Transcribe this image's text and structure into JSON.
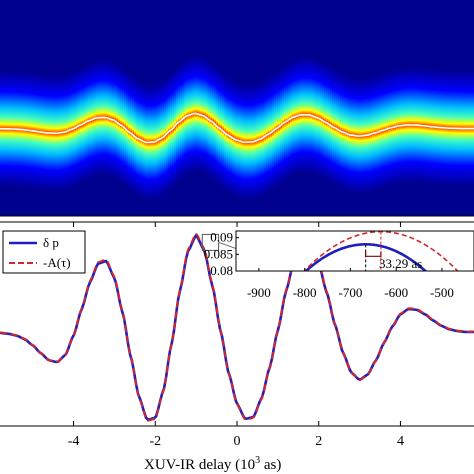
{
  "chart_data": [
    {
      "type": "heatmap",
      "title": "",
      "colormap": "jet",
      "background_color": "#00008f",
      "centerline_color": "#ffffff",
      "xlim": [
        -5.8,
        5.8
      ],
      "description_ridge_follows": "delta_p"
    },
    {
      "type": "line",
      "title": "",
      "xlabel": "XUV-IR delay (10",
      "xlabel_exp": "3",
      "xlabel_tail": " as)",
      "ylabel": "",
      "xlim": [
        -5.8,
        5.8
      ],
      "ylim": [
        -1.1,
        1.2
      ],
      "x_ticks": [
        -4,
        -2,
        0,
        2,
        4
      ],
      "x_tick_labels": [
        "-4",
        "-2",
        "0",
        "2",
        "4"
      ],
      "grid": false,
      "legend_position": "top-left",
      "series": [
        {
          "name": "δ p",
          "style": "solid",
          "color": "#1f1fbf"
        },
        {
          "name": "-A(τ)",
          "style": "dashed",
          "color": "#d62728"
        }
      ],
      "waveform": {
        "x": [
          -5.8,
          -5.6,
          -5.4,
          -5.2,
          -5.0,
          -4.8,
          -4.6,
          -4.4,
          -4.2,
          -4.0,
          -3.8,
          -3.6,
          -3.4,
          -3.2,
          -3.0,
          -2.8,
          -2.6,
          -2.4,
          -2.2,
          -2.0,
          -1.8,
          -1.6,
          -1.4,
          -1.2,
          -1.0,
          -0.8,
          -0.6,
          -0.4,
          -0.2,
          0.0,
          0.2,
          0.4,
          0.6,
          0.8,
          1.0,
          1.2,
          1.4,
          1.6,
          1.8,
          2.0,
          2.2,
          2.4,
          2.6,
          2.8,
          3.0,
          3.2,
          3.4,
          3.6,
          3.8,
          4.0,
          4.2,
          4.4,
          4.6,
          4.8,
          5.0,
          5.2,
          5.4,
          5.6,
          5.8
        ],
        "y": [
          -0.05,
          -0.06,
          -0.08,
          -0.12,
          -0.19,
          -0.28,
          -0.36,
          -0.38,
          -0.3,
          -0.08,
          0.22,
          0.52,
          0.73,
          0.76,
          0.57,
          0.18,
          -0.32,
          -0.77,
          -1.03,
          -1.01,
          -0.7,
          -0.17,
          0.42,
          0.87,
          1.05,
          0.88,
          0.48,
          -0.03,
          -0.51,
          -0.85,
          -1.02,
          -1.0,
          -0.79,
          -0.44,
          -0.02,
          0.42,
          0.77,
          0.95,
          0.93,
          0.73,
          0.4,
          0.04,
          -0.28,
          -0.5,
          -0.58,
          -0.52,
          -0.36,
          -0.16,
          0.02,
          0.16,
          0.22,
          0.21,
          0.16,
          0.09,
          0.03,
          -0.01,
          -0.03,
          -0.04,
          -0.04
        ]
      },
      "zoom_box_x": [
        -0.85,
        -0.45
      ],
      "zoom_box_y": [
        0.88,
        1.06
      ]
    },
    {
      "type": "line",
      "title": "",
      "xlim": [
        -950,
        -430
      ],
      "ylim": [
        0.08,
        0.092
      ],
      "x_ticks": [
        -900,
        -800,
        -700,
        -600,
        -500
      ],
      "x_tick_labels": [
        "-900",
        "-800",
        "-700",
        "-600",
        "-500"
      ],
      "y_ticks": [
        0.08,
        0.085,
        0.09
      ],
      "y_tick_labels": [
        "0.08",
        "0.085",
        "0.09"
      ],
      "series": [
        {
          "name": "δ p",
          "style": "solid",
          "color": "#1f1fbf",
          "peak_x": -666.7,
          "peak_y": 0.088,
          "curvature": 4.7e-07
        },
        {
          "name": "-A(τ)",
          "style": "dashed",
          "color": "#d62728",
          "peak_x": -633.4,
          "peak_y": 0.0918,
          "curvature": 4.2e-07
        }
      ],
      "annotation": "33.29 as"
    }
  ]
}
